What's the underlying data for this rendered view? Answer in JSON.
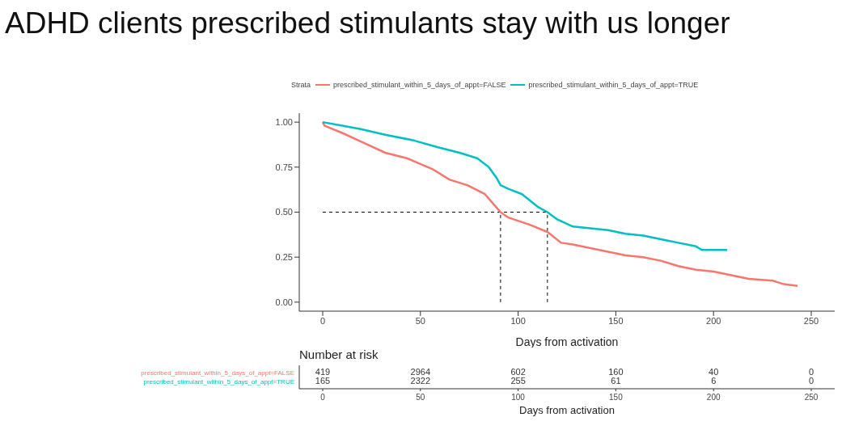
{
  "chart_data": [
    {
      "type": "line",
      "title": "ADHD clients prescribed stimulants stay with us longer",
      "legend_title": "Strata",
      "legend": "top",
      "xlabel": "Days from activation",
      "xlim": [
        -12,
        262
      ],
      "xticks": [
        0,
        50,
        100,
        150,
        200,
        250
      ],
      "ylim": [
        -0.05,
        1.05
      ],
      "yticks": [
        {
          "value": 0,
          "label": "0.00"
        },
        {
          "value": 0.25,
          "label": "0.25"
        },
        {
          "value": 0.5,
          "label": "0.50"
        },
        {
          "value": 0.75,
          "label": "0.75"
        },
        {
          "value": 1,
          "label": "1.00"
        }
      ],
      "grid": false,
      "marker": "none",
      "line_style": "solid",
      "series": [
        {
          "name": "prescribed_stimulant_within_5_days_of_appt=FALSE",
          "color": "#f8766d",
          "x": [
            0,
            1,
            10,
            20,
            32,
            43,
            56,
            65,
            74,
            83,
            87,
            91,
            95,
            106,
            115,
            122,
            128,
            137,
            146,
            155,
            164,
            173,
            182,
            191,
            200,
            209,
            218,
            230,
            236,
            243
          ],
          "values": [
            1.0,
            0.98,
            0.94,
            0.89,
            0.83,
            0.8,
            0.74,
            0.68,
            0.65,
            0.6,
            0.55,
            0.5,
            0.47,
            0.43,
            0.39,
            0.33,
            0.32,
            0.3,
            0.28,
            0.26,
            0.25,
            0.23,
            0.2,
            0.18,
            0.17,
            0.15,
            0.13,
            0.12,
            0.1,
            0.09
          ]
        },
        {
          "name": "prescribed_stimulant_within_5_days_of_appt=TRUE",
          "color": "#00bfc4",
          "x": [
            0,
            10,
            20,
            32,
            46,
            59,
            70,
            79,
            85,
            89,
            91,
            95,
            102,
            110,
            115,
            120,
            128,
            137,
            146,
            155,
            164,
            173,
            182,
            191,
            194,
            207
          ],
          "values": [
            1.0,
            0.98,
            0.96,
            0.93,
            0.9,
            0.86,
            0.83,
            0.8,
            0.75,
            0.69,
            0.65,
            0.63,
            0.6,
            0.53,
            0.5,
            0.46,
            0.42,
            0.41,
            0.4,
            0.38,
            0.37,
            0.35,
            0.33,
            0.31,
            0.29,
            0.29
          ]
        }
      ],
      "ref_lines": [
        {
          "axis": "y",
          "value": 0.5,
          "color": "#000000",
          "line_style": "dashed"
        },
        {
          "axis": "x",
          "value": 91,
          "color": "#000000",
          "line_style": "dashed"
        },
        {
          "axis": "x",
          "value": 115,
          "color": "#000000",
          "line_style": "dashed"
        }
      ]
    },
    {
      "type": "heatmap",
      "title": "Number at risk",
      "xlabel": "Days from activation",
      "x": [
        0,
        50,
        100,
        150,
        200,
        250
      ],
      "xlim": [
        -12,
        262
      ],
      "xticks": [
        0,
        50,
        100,
        150,
        200,
        250
      ],
      "data_labels": true,
      "y_categories": [
        "prescribed_stimulant_within_5_days_of_appt=FALSE",
        "prescribed_stimulant_within_5_days_of_appt=TRUE"
      ],
      "colors": [
        "#f8766d",
        "#00bfc4"
      ],
      "cells": [
        [
          419,
          2964,
          602,
          160,
          40,
          0
        ],
        [
          165,
          2322,
          255,
          61,
          6,
          0
        ]
      ]
    }
  ]
}
